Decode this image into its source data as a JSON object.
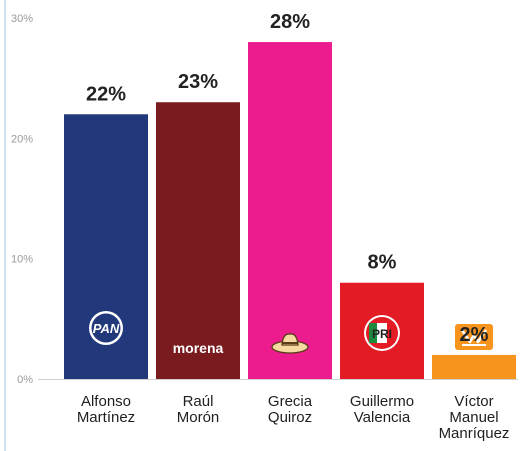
{
  "chart_data": {
    "type": "bar",
    "title": "",
    "xlabel": "",
    "ylabel": "",
    "ylim": [
      0,
      30
    ],
    "yticks": [
      "0%",
      "10%",
      "20%",
      "30%"
    ],
    "grid": false,
    "categories": [
      [
        "Alfonso",
        "Martínez"
      ],
      [
        "Raúl",
        "Morón"
      ],
      [
        "Grecia",
        "Quiroz"
      ],
      [
        "Guillermo",
        "Valencia"
      ],
      [
        "Víctor",
        "Manuel",
        "Manríquez"
      ]
    ],
    "values": [
      22,
      23,
      28,
      8,
      2
    ],
    "value_labels": [
      "22%",
      "23%",
      "28%",
      "8%",
      "2%"
    ],
    "colors": [
      "#21397a",
      "#7a1c1f",
      "#ec1c8f",
      "#e31b25",
      "#f7941d"
    ],
    "logos": [
      {
        "icon": "pan-logo-icon",
        "text": "PAN"
      },
      {
        "icon": "morena-logo-icon",
        "text": "morena"
      },
      {
        "icon": "sombrero-icon",
        "text": ""
      },
      {
        "icon": "pri-logo-icon",
        "text": "PRI"
      },
      {
        "icon": "movimiento-ciudadano-logo-icon",
        "text": ""
      }
    ]
  }
}
